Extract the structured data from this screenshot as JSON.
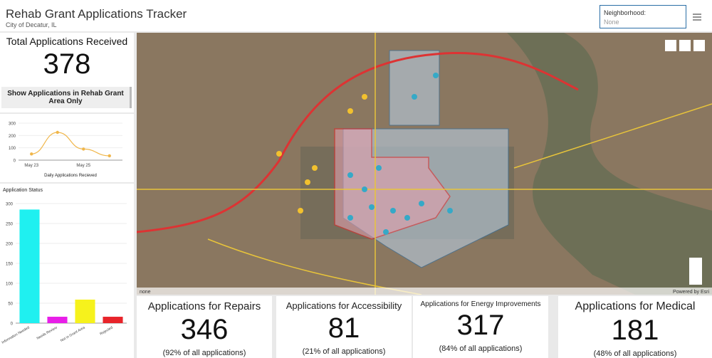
{
  "header": {
    "title": "Rehab Grant Applications Tracker",
    "subtitle": "City of Decatur, IL",
    "filter_label": "Neighborhood:",
    "filter_value": "None"
  },
  "total": {
    "title": "Total Applications Received",
    "value": 378,
    "button": "Show Applications in Rehab Grant Area Only"
  },
  "daily_chart": {
    "type": "line",
    "title": "Daily Applications Recieved",
    "categories": [
      "May 23",
      null,
      "May 25",
      null
    ],
    "values": [
      50,
      225,
      90,
      35
    ],
    "color": "#f0b64a",
    "ylim": [
      0,
      300
    ],
    "yticks": [
      0,
      100,
      200,
      300
    ]
  },
  "status_chart": {
    "type": "bar",
    "title": "Application Status",
    "categories": [
      "Information Needed",
      "Needs Review",
      "Not in Grant Area",
      "Rejected"
    ],
    "values": [
      285,
      16,
      59,
      16
    ],
    "colors": [
      "#1ff0f0",
      "#e81ee8",
      "#f6f21c",
      "#e8242a"
    ],
    "ylim": [
      0,
      300
    ],
    "yticks": [
      0,
      50,
      100,
      150,
      200,
      250,
      300
    ]
  },
  "map": {
    "left_label": "none",
    "attribution": "Powered by Esri"
  },
  "cards": [
    {
      "title": "Applications for Repairs",
      "value": 346,
      "note": "(92% of all applications)"
    },
    {
      "title": "Applications for Accessibility",
      "value": 81,
      "note": "(21% of all applications)"
    },
    {
      "title": "Applications for Energy Improvements",
      "value": 317,
      "note": "(84% of all applications)"
    },
    {
      "title": "Applications for Medical",
      "value": 181,
      "note": "(48% of all applications)"
    }
  ]
}
